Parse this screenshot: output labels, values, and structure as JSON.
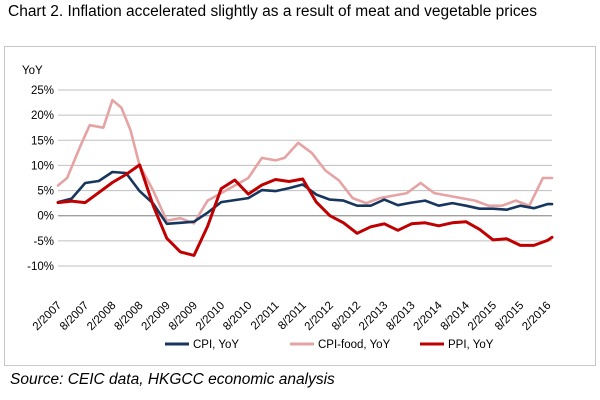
{
  "title": "Chart 2. Inflation accelerated slightly as a result of meat and vegetable prices",
  "source": "Source: CEIC data, HKGCC economic analysis",
  "chart_data": {
    "type": "line",
    "ylabel": "YoY",
    "ylim": [
      -10,
      25
    ],
    "yticks": [
      25,
      20,
      15,
      10,
      5,
      0,
      -5,
      -10
    ],
    "ytick_labels": [
      "25%",
      "20%",
      "15%",
      "10%",
      "5%",
      "0%",
      "-5%",
      "-10%"
    ],
    "x_start": "2007-02",
    "x_end": "2016-03",
    "xtick_labels": [
      "2/2007",
      "8/2007",
      "2/2008",
      "8/2008",
      "2/2009",
      "8/2009",
      "2/2010",
      "8/2010",
      "2/2011",
      "8/2011",
      "2/2012",
      "8/2012",
      "2/2013",
      "8/2013",
      "2/2014",
      "8/2014",
      "2/2015",
      "8/2015",
      "2/2016"
    ],
    "grid": "horizontal",
    "legend": "bottom",
    "series": [
      {
        "name": "CPI, YoY",
        "color": "#17365D",
        "points": [
          [
            "2007-02",
            2.7
          ],
          [
            "2007-05",
            3.4
          ],
          [
            "2007-08",
            6.5
          ],
          [
            "2007-11",
            6.9
          ],
          [
            "2008-02",
            8.7
          ],
          [
            "2008-05",
            8.5
          ],
          [
            "2008-08",
            4.9
          ],
          [
            "2008-11",
            2.4
          ],
          [
            "2009-02",
            -1.6
          ],
          [
            "2009-05",
            -1.4
          ],
          [
            "2009-08",
            -1.2
          ],
          [
            "2009-11",
            0.6
          ],
          [
            "2010-02",
            2.7
          ],
          [
            "2010-05",
            3.1
          ],
          [
            "2010-08",
            3.5
          ],
          [
            "2010-11",
            5.1
          ],
          [
            "2011-02",
            4.9
          ],
          [
            "2011-05",
            5.5
          ],
          [
            "2011-08",
            6.2
          ],
          [
            "2011-11",
            4.2
          ],
          [
            "2012-02",
            3.2
          ],
          [
            "2012-05",
            3.0
          ],
          [
            "2012-08",
            2.0
          ],
          [
            "2012-11",
            2.0
          ],
          [
            "2013-02",
            3.2
          ],
          [
            "2013-05",
            2.1
          ],
          [
            "2013-08",
            2.6
          ],
          [
            "2013-11",
            3.0
          ],
          [
            "2014-02",
            2.0
          ],
          [
            "2014-05",
            2.5
          ],
          [
            "2014-08",
            2.0
          ],
          [
            "2014-11",
            1.4
          ],
          [
            "2015-02",
            1.4
          ],
          [
            "2015-05",
            1.2
          ],
          [
            "2015-08",
            2.0
          ],
          [
            "2015-11",
            1.5
          ],
          [
            "2016-02",
            2.3
          ],
          [
            "2016-03",
            2.3
          ]
        ]
      },
      {
        "name": "CPI-food, YoY",
        "color": "#E6A3A3",
        "points": [
          [
            "2007-02",
            6.0
          ],
          [
            "2007-04",
            7.5
          ],
          [
            "2007-07",
            14.0
          ],
          [
            "2007-09",
            18.0
          ],
          [
            "2007-12",
            17.5
          ],
          [
            "2008-02",
            23.0
          ],
          [
            "2008-04",
            21.5
          ],
          [
            "2008-06",
            17.0
          ],
          [
            "2008-08",
            10.0
          ],
          [
            "2008-11",
            5.0
          ],
          [
            "2009-01",
            1.0
          ],
          [
            "2009-02",
            -1.0
          ],
          [
            "2009-05",
            -0.5
          ],
          [
            "2009-08",
            -1.5
          ],
          [
            "2009-11",
            3.0
          ],
          [
            "2010-02",
            4.5
          ],
          [
            "2010-05",
            6.0
          ],
          [
            "2010-08",
            7.5
          ],
          [
            "2010-11",
            11.5
          ],
          [
            "2011-02",
            11.0
          ],
          [
            "2011-04",
            11.5
          ],
          [
            "2011-07",
            14.5
          ],
          [
            "2011-10",
            12.5
          ],
          [
            "2012-01",
            9.0
          ],
          [
            "2012-04",
            7.0
          ],
          [
            "2012-07",
            3.5
          ],
          [
            "2012-10",
            2.5
          ],
          [
            "2013-01",
            3.5
          ],
          [
            "2013-04",
            4.0
          ],
          [
            "2013-07",
            4.5
          ],
          [
            "2013-10",
            6.5
          ],
          [
            "2014-01",
            4.5
          ],
          [
            "2014-04",
            4.0
          ],
          [
            "2014-07",
            3.5
          ],
          [
            "2014-10",
            3.0
          ],
          [
            "2015-01",
            2.0
          ],
          [
            "2015-04",
            2.0
          ],
          [
            "2015-07",
            3.0
          ],
          [
            "2015-10",
            2.0
          ],
          [
            "2016-01",
            7.5
          ],
          [
            "2016-03",
            7.5
          ]
        ]
      },
      {
        "name": "PPI, YoY",
        "color": "#C00000",
        "points": [
          [
            "2007-02",
            2.6
          ],
          [
            "2007-05",
            2.9
          ],
          [
            "2007-08",
            2.6
          ],
          [
            "2007-11",
            4.6
          ],
          [
            "2008-02",
            6.6
          ],
          [
            "2008-05",
            8.2
          ],
          [
            "2008-08",
            10.1
          ],
          [
            "2008-11",
            2.0
          ],
          [
            "2009-02",
            -4.5
          ],
          [
            "2009-05",
            -7.2
          ],
          [
            "2009-08",
            -7.9
          ],
          [
            "2009-11",
            -2.1
          ],
          [
            "2010-02",
            5.4
          ],
          [
            "2010-05",
            7.1
          ],
          [
            "2010-08",
            4.3
          ],
          [
            "2010-11",
            6.1
          ],
          [
            "2011-02",
            7.2
          ],
          [
            "2011-05",
            6.8
          ],
          [
            "2011-08",
            7.3
          ],
          [
            "2011-11",
            2.7
          ],
          [
            "2012-02",
            0.0
          ],
          [
            "2012-05",
            -1.4
          ],
          [
            "2012-08",
            -3.5
          ],
          [
            "2012-11",
            -2.2
          ],
          [
            "2013-02",
            -1.6
          ],
          [
            "2013-05",
            -2.9
          ],
          [
            "2013-08",
            -1.6
          ],
          [
            "2013-11",
            -1.4
          ],
          [
            "2014-02",
            -2.0
          ],
          [
            "2014-05",
            -1.4
          ],
          [
            "2014-08",
            -1.2
          ],
          [
            "2014-11",
            -2.7
          ],
          [
            "2015-02",
            -4.8
          ],
          [
            "2015-05",
            -4.6
          ],
          [
            "2015-08",
            -5.9
          ],
          [
            "2015-11",
            -5.9
          ],
          [
            "2016-02",
            -4.9
          ],
          [
            "2016-03",
            -4.3
          ]
        ]
      }
    ]
  }
}
